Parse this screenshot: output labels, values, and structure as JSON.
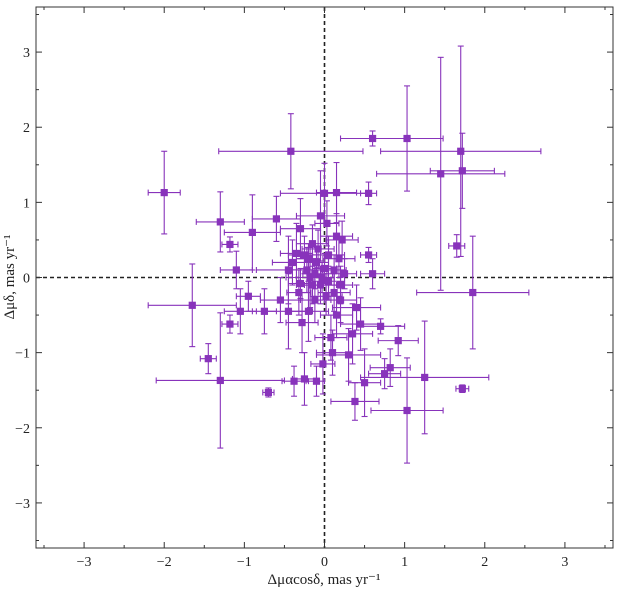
{
  "chart_data": {
    "type": "scatter",
    "title": "",
    "xlabel": "Δμαcosδ, mas yr⁻¹",
    "ylabel": "Δμδ, mas yr⁻¹",
    "xlim": [
      -3.6,
      3.6
    ],
    "ylim": [
      -3.6,
      3.6
    ],
    "xticks": [
      -3,
      -2,
      -1,
      0,
      1,
      2,
      3
    ],
    "yticks": [
      -3,
      -2,
      -1,
      0,
      1,
      2,
      3
    ],
    "xtick_labels": [
      "−3",
      "−2",
      "−1",
      "0",
      "1",
      "2",
      "3"
    ],
    "ytick_labels": [
      "−3",
      "−2",
      "−1",
      "0",
      "1",
      "2",
      "3"
    ],
    "reference_lines": {
      "x": 0,
      "y": 0,
      "style": "dashed"
    },
    "grid": false,
    "legend": "none",
    "marker_color": "#8833bb",
    "points": [
      {
        "x": -2.0,
        "y": 1.13,
        "xerr": 0.2,
        "yerr": 0.55
      },
      {
        "x": -1.65,
        "y": -0.37,
        "xerr": 0.55,
        "yerr": 0.55
      },
      {
        "x": -1.45,
        "y": -1.08,
        "xerr": 0.1,
        "yerr": 0.2
      },
      {
        "x": -1.3,
        "y": 0.74,
        "xerr": 0.3,
        "yerr": 0.4
      },
      {
        "x": -1.3,
        "y": -1.37,
        "xerr": 0.8,
        "yerr": 0.9
      },
      {
        "x": -1.18,
        "y": 0.44,
        "xerr": 0.1,
        "yerr": 0.1
      },
      {
        "x": -1.18,
        "y": -0.62,
        "xerr": 0.1,
        "yerr": 0.12
      },
      {
        "x": -1.1,
        "y": 0.1,
        "xerr": 0.2,
        "yerr": 0.25
      },
      {
        "x": -1.05,
        "y": -0.45,
        "xerr": 0.2,
        "yerr": 0.3
      },
      {
        "x": -0.95,
        "y": -0.25,
        "xerr": 0.15,
        "yerr": 0.2
      },
      {
        "x": -0.9,
        "y": 0.6,
        "xerr": 0.35,
        "yerr": 0.5
      },
      {
        "x": -0.75,
        "y": -0.45,
        "xerr": 0.15,
        "yerr": 0.3
      },
      {
        "x": -0.7,
        "y": -1.53,
        "xerr": 0.07,
        "yerr": 0.06
      },
      {
        "x": -0.6,
        "y": 0.78,
        "xerr": 0.3,
        "yerr": 0.3
      },
      {
        "x": -0.55,
        "y": -0.3,
        "xerr": 0.25,
        "yerr": 0.3
      },
      {
        "x": -0.45,
        "y": 0.1,
        "xerr": 0.4,
        "yerr": 0.45
      },
      {
        "x": -0.45,
        "y": -0.45,
        "xerr": 0.3,
        "yerr": 0.5
      },
      {
        "x": -0.42,
        "y": 1.68,
        "xerr": 0.9,
        "yerr": 0.5
      },
      {
        "x": -0.4,
        "y": 0.2,
        "xerr": 0.25,
        "yerr": 0.3
      },
      {
        "x": -0.38,
        "y": -1.38,
        "xerr": 0.15,
        "yerr": 0.2
      },
      {
        "x": -0.35,
        "y": 0.32,
        "xerr": 0.2,
        "yerr": 0.4
      },
      {
        "x": -0.32,
        "y": -0.2,
        "xerr": 0.15,
        "yerr": 0.3
      },
      {
        "x": -0.3,
        "y": 0.65,
        "xerr": 0.25,
        "yerr": 0.4
      },
      {
        "x": -0.3,
        "y": -0.08,
        "xerr": 0.15,
        "yerr": 0.2
      },
      {
        "x": -0.28,
        "y": -0.6,
        "xerr": 0.2,
        "yerr": 0.4
      },
      {
        "x": -0.25,
        "y": 0.3,
        "xerr": 0.2,
        "yerr": 0.25
      },
      {
        "x": -0.25,
        "y": -1.35,
        "xerr": 0.15,
        "yerr": 0.35
      },
      {
        "x": -0.22,
        "y": 0.1,
        "xerr": 0.2,
        "yerr": 0.3
      },
      {
        "x": -0.2,
        "y": -0.45,
        "xerr": 0.25,
        "yerr": 0.4
      },
      {
        "x": -0.2,
        "y": 0.25,
        "xerr": 0.15,
        "yerr": 0.2
      },
      {
        "x": -0.18,
        "y": 0.0,
        "xerr": 0.3,
        "yerr": 0.4
      },
      {
        "x": -0.15,
        "y": -0.1,
        "xerr": 0.2,
        "yerr": 0.25
      },
      {
        "x": -0.15,
        "y": 0.45,
        "xerr": 0.2,
        "yerr": 0.25
      },
      {
        "x": -0.12,
        "y": -0.3,
        "xerr": 0.2,
        "yerr": 0.3
      },
      {
        "x": -0.12,
        "y": 0.05,
        "xerr": 0.15,
        "yerr": 0.2
      },
      {
        "x": -0.1,
        "y": 0.2,
        "xerr": 0.15,
        "yerr": 0.2
      },
      {
        "x": -0.1,
        "y": -1.38,
        "xerr": 0.1,
        "yerr": 0.2
      },
      {
        "x": -0.08,
        "y": 0.38,
        "xerr": 0.2,
        "yerr": 0.25
      },
      {
        "x": -0.05,
        "y": -0.1,
        "xerr": 0.2,
        "yerr": 0.25
      },
      {
        "x": -0.05,
        "y": 0.82,
        "xerr": 0.3,
        "yerr": 0.6
      },
      {
        "x": -0.03,
        "y": 0.0,
        "xerr": 0.15,
        "yerr": 0.2
      },
      {
        "x": -0.02,
        "y": -1.15,
        "xerr": 0.15,
        "yerr": 0.4
      },
      {
        "x": 0.0,
        "y": 1.12,
        "xerr": 0.55,
        "yerr": 0.4
      },
      {
        "x": 0.0,
        "y": 0.12,
        "xerr": 0.15,
        "yerr": 0.2
      },
      {
        "x": 0.02,
        "y": -0.25,
        "xerr": 0.2,
        "yerr": 0.25
      },
      {
        "x": 0.03,
        "y": 0.72,
        "xerr": 0.15,
        "yerr": 0.3
      },
      {
        "x": 0.05,
        "y": 0.3,
        "xerr": 0.2,
        "yerr": 0.25
      },
      {
        "x": 0.05,
        "y": -0.05,
        "xerr": 0.2,
        "yerr": 0.2
      },
      {
        "x": 0.08,
        "y": -0.8,
        "xerr": 0.2,
        "yerr": 0.3
      },
      {
        "x": 0.1,
        "y": -1.0,
        "xerr": 0.2,
        "yerr": 0.3
      },
      {
        "x": 0.12,
        "y": 0.1,
        "xerr": 0.15,
        "yerr": 0.2
      },
      {
        "x": 0.12,
        "y": -0.2,
        "xerr": 0.2,
        "yerr": 0.25
      },
      {
        "x": 0.15,
        "y": 1.13,
        "xerr": 0.25,
        "yerr": 0.4
      },
      {
        "x": 0.15,
        "y": 0.55,
        "xerr": 0.2,
        "yerr": 0.3
      },
      {
        "x": 0.15,
        "y": -0.5,
        "xerr": 0.2,
        "yerr": 0.3
      },
      {
        "x": 0.18,
        "y": 0.25,
        "xerr": 0.2,
        "yerr": 0.25
      },
      {
        "x": 0.2,
        "y": -0.3,
        "xerr": 0.2,
        "yerr": 0.3
      },
      {
        "x": 0.2,
        "y": -0.1,
        "xerr": 0.15,
        "yerr": 0.25
      },
      {
        "x": 0.22,
        "y": 0.5,
        "xerr": 0.2,
        "yerr": 0.25
      },
      {
        "x": 0.25,
        "y": 0.05,
        "xerr": 0.15,
        "yerr": 0.2
      },
      {
        "x": 0.3,
        "y": -1.03,
        "xerr": 0.4,
        "yerr": 0.35
      },
      {
        "x": 0.35,
        "y": -0.75,
        "xerr": 0.25,
        "yerr": 0.4
      },
      {
        "x": 0.38,
        "y": -1.65,
        "xerr": 0.3,
        "yerr": 0.25
      },
      {
        "x": 0.4,
        "y": -0.4,
        "xerr": 0.3,
        "yerr": 0.3
      },
      {
        "x": 0.45,
        "y": -0.62,
        "xerr": 0.25,
        "yerr": 0.35
      },
      {
        "x": 0.5,
        "y": -1.4,
        "xerr": 0.2,
        "yerr": 0.45
      },
      {
        "x": 0.55,
        "y": 1.12,
        "xerr": 0.1,
        "yerr": 0.15
      },
      {
        "x": 0.55,
        "y": 0.3,
        "xerr": 0.1,
        "yerr": 0.1
      },
      {
        "x": 0.6,
        "y": 0.05,
        "xerr": 0.15,
        "yerr": 0.2
      },
      {
        "x": 0.6,
        "y": 1.85,
        "xerr": 0.4,
        "yerr": 0.1
      },
      {
        "x": 0.7,
        "y": -0.65,
        "xerr": 0.3,
        "yerr": 0.1
      },
      {
        "x": 0.75,
        "y": -1.28,
        "xerr": 0.2,
        "yerr": 0.2
      },
      {
        "x": 0.82,
        "y": -1.2,
        "xerr": 0.25,
        "yerr": 0.25
      },
      {
        "x": 0.92,
        "y": -0.84,
        "xerr": 0.25,
        "yerr": 0.2
      },
      {
        "x": 1.03,
        "y": 1.85,
        "xerr": 0.45,
        "yerr": 0.7
      },
      {
        "x": 1.03,
        "y": -1.77,
        "xerr": 0.45,
        "yerr": 0.7
      },
      {
        "x": 1.25,
        "y": -1.33,
        "xerr": 0.8,
        "yerr": 0.75
      },
      {
        "x": 1.45,
        "y": 1.38,
        "xerr": 0.8,
        "yerr": 1.55
      },
      {
        "x": 1.65,
        "y": 0.42,
        "xerr": 0.1,
        "yerr": 0.15
      },
      {
        "x": 1.7,
        "y": 1.68,
        "xerr": 1.0,
        "yerr": 1.4
      },
      {
        "x": 1.72,
        "y": 1.42,
        "xerr": 0.4,
        "yerr": 0.5
      },
      {
        "x": 1.72,
        "y": -1.48,
        "xerr": 0.08,
        "yerr": 0.05
      },
      {
        "x": 1.85,
        "y": -0.2,
        "xerr": 0.7,
        "yerr": 0.75
      }
    ]
  }
}
